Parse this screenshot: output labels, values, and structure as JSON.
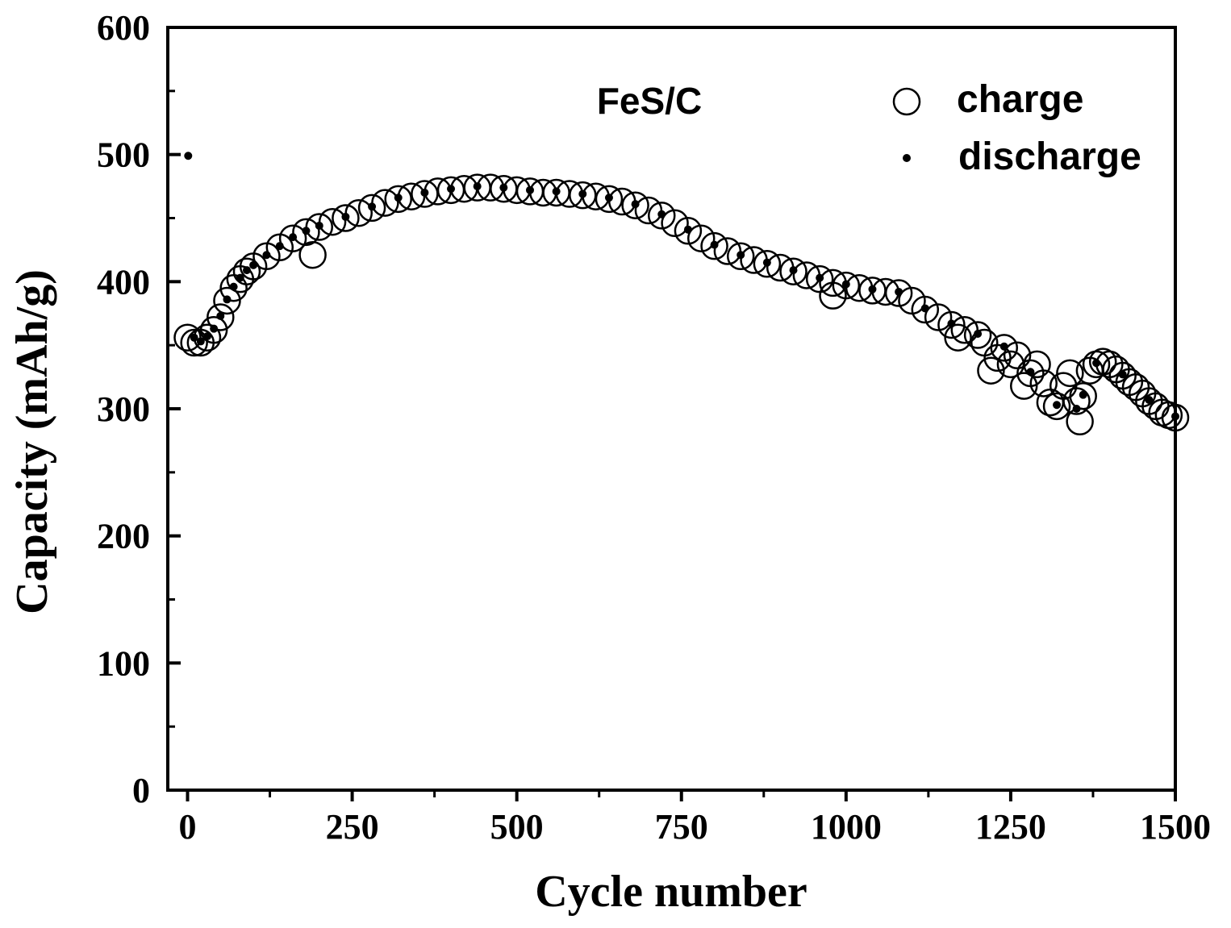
{
  "chart_data": {
    "type": "scatter",
    "title": "",
    "xlabel": "Cycle number",
    "ylabel": "Capacity (mAh/g)",
    "xlim": [
      -30,
      1500
    ],
    "ylim": [
      0,
      600
    ],
    "x_ticks": [
      0,
      250,
      500,
      750,
      1000,
      1250,
      1500
    ],
    "x_tick_labels": [
      "0",
      "250",
      "500",
      "750",
      "1000",
      "1250",
      "1500"
    ],
    "y_ticks": [
      0,
      100,
      200,
      300,
      400,
      500,
      600
    ],
    "y_tick_labels": [
      "0",
      "100",
      "200",
      "300",
      "400",
      "500",
      "600"
    ],
    "grid": false,
    "annotation": "FeS/C",
    "legend_position": "top-right",
    "series": [
      {
        "name": "charge",
        "marker": "open-circle",
        "color": "#000000",
        "points": [
          [
            0,
            356
          ],
          [
            10,
            352
          ],
          [
            20,
            352
          ],
          [
            30,
            356
          ],
          [
            40,
            362
          ],
          [
            50,
            372
          ],
          [
            60,
            385
          ],
          [
            70,
            395
          ],
          [
            80,
            402
          ],
          [
            90,
            408
          ],
          [
            100,
            412
          ],
          [
            120,
            420
          ],
          [
            140,
            427
          ],
          [
            160,
            434
          ],
          [
            180,
            439
          ],
          [
            190,
            421
          ],
          [
            200,
            443
          ],
          [
            220,
            447
          ],
          [
            240,
            450
          ],
          [
            260,
            454
          ],
          [
            280,
            458
          ],
          [
            300,
            462
          ],
          [
            320,
            465
          ],
          [
            340,
            467
          ],
          [
            360,
            469
          ],
          [
            380,
            471
          ],
          [
            400,
            472
          ],
          [
            420,
            473
          ],
          [
            440,
            474
          ],
          [
            460,
            474
          ],
          [
            480,
            473
          ],
          [
            500,
            472
          ],
          [
            520,
            471
          ],
          [
            540,
            470
          ],
          [
            560,
            470
          ],
          [
            580,
            469
          ],
          [
            600,
            468
          ],
          [
            620,
            467
          ],
          [
            640,
            465
          ],
          [
            660,
            463
          ],
          [
            680,
            460
          ],
          [
            700,
            456
          ],
          [
            720,
            452
          ],
          [
            740,
            446
          ],
          [
            760,
            440
          ],
          [
            780,
            434
          ],
          [
            800,
            428
          ],
          [
            820,
            424
          ],
          [
            840,
            420
          ],
          [
            860,
            417
          ],
          [
            880,
            414
          ],
          [
            900,
            411
          ],
          [
            920,
            408
          ],
          [
            940,
            405
          ],
          [
            960,
            402
          ],
          [
            980,
            389
          ],
          [
            980,
            399
          ],
          [
            1000,
            397
          ],
          [
            1020,
            395
          ],
          [
            1040,
            393
          ],
          [
            1060,
            392
          ],
          [
            1080,
            391
          ],
          [
            1100,
            385
          ],
          [
            1120,
            378
          ],
          [
            1140,
            372
          ],
          [
            1160,
            366
          ],
          [
            1170,
            356
          ],
          [
            1180,
            362
          ],
          [
            1200,
            358
          ],
          [
            1210,
            352
          ],
          [
            1220,
            330
          ],
          [
            1230,
            340
          ],
          [
            1240,
            348
          ],
          [
            1250,
            335
          ],
          [
            1260,
            342
          ],
          [
            1270,
            318
          ],
          [
            1280,
            328
          ],
          [
            1290,
            335
          ],
          [
            1300,
            320
          ],
          [
            1310,
            305
          ],
          [
            1320,
            302
          ],
          [
            1330,
            318
          ],
          [
            1340,
            328
          ],
          [
            1350,
            306
          ],
          [
            1355,
            290
          ],
          [
            1360,
            310
          ],
          [
            1370,
            330
          ],
          [
            1380,
            335
          ],
          [
            1390,
            337
          ],
          [
            1400,
            335
          ],
          [
            1410,
            331
          ],
          [
            1420,
            326
          ],
          [
            1430,
            321
          ],
          [
            1440,
            317
          ],
          [
            1450,
            312
          ],
          [
            1460,
            306
          ],
          [
            1470,
            302
          ],
          [
            1480,
            297
          ],
          [
            1490,
            295
          ],
          [
            1500,
            293
          ]
        ]
      },
      {
        "name": "discharge",
        "marker": "dot",
        "color": "#000000",
        "points": [
          [
            1,
            499
          ],
          [
            10,
            356
          ],
          [
            20,
            353
          ],
          [
            30,
            357
          ],
          [
            40,
            363
          ],
          [
            50,
            373
          ],
          [
            60,
            386
          ],
          [
            70,
            396
          ],
          [
            80,
            403
          ],
          [
            90,
            409
          ],
          [
            100,
            413
          ],
          [
            120,
            421
          ],
          [
            140,
            428
          ],
          [
            160,
            435
          ],
          [
            180,
            440
          ],
          [
            200,
            444
          ],
          [
            240,
            451
          ],
          [
            280,
            459
          ],
          [
            320,
            466
          ],
          [
            360,
            470
          ],
          [
            400,
            473
          ],
          [
            440,
            475
          ],
          [
            480,
            474
          ],
          [
            520,
            472
          ],
          [
            560,
            471
          ],
          [
            600,
            469
          ],
          [
            640,
            466
          ],
          [
            680,
            461
          ],
          [
            720,
            453
          ],
          [
            760,
            441
          ],
          [
            800,
            429
          ],
          [
            840,
            421
          ],
          [
            880,
            415
          ],
          [
            920,
            409
          ],
          [
            960,
            403
          ],
          [
            1000,
            398
          ],
          [
            1040,
            394
          ],
          [
            1080,
            392
          ],
          [
            1120,
            379
          ],
          [
            1160,
            367
          ],
          [
            1200,
            359
          ],
          [
            1240,
            349
          ],
          [
            1280,
            329
          ],
          [
            1320,
            303
          ],
          [
            1350,
            300
          ],
          [
            1360,
            311
          ],
          [
            1380,
            336
          ],
          [
            1420,
            327
          ],
          [
            1460,
            307
          ],
          [
            1500,
            294
          ]
        ]
      }
    ]
  }
}
